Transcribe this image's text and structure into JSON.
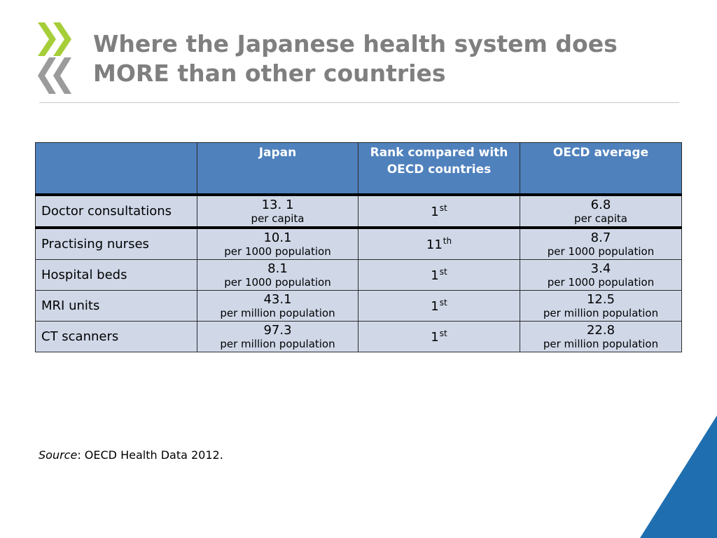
{
  "header": {
    "title_line1": "Where the Japanese health system does",
    "title_line2": "MORE than other countries"
  },
  "table": {
    "columns": [
      "",
      "Japan",
      "Rank compared with OECD countries",
      "OECD average"
    ],
    "rows": [
      {
        "label": "Doctor consultations",
        "japan_value": "13. 1",
        "japan_unit": "per capita",
        "rank_num": "1",
        "rank_suffix": "st",
        "oecd_value": "6.8",
        "oecd_unit": "per capita"
      },
      {
        "label": "Practising nurses",
        "japan_value": "10.1",
        "japan_unit": "per 1000 population",
        "rank_num": "11",
        "rank_suffix": "th",
        "oecd_value": "8.7",
        "oecd_unit": "per 1000 population"
      },
      {
        "label": "Hospital beds",
        "japan_value": "8.1",
        "japan_unit": "per 1000 population",
        "rank_num": "1",
        "rank_suffix": "st",
        "oecd_value": "3.4",
        "oecd_unit": "per 1000 population"
      },
      {
        "label": "MRI units",
        "japan_value": "43.1",
        "japan_unit": "per million population",
        "rank_num": "1",
        "rank_suffix": "st",
        "oecd_value": "12.5",
        "oecd_unit": "per million population"
      },
      {
        "label": "CT scanners",
        "japan_value": "97.3",
        "japan_unit": "per million population",
        "rank_num": "1",
        "rank_suffix": "st",
        "oecd_value": "22.8",
        "oecd_unit": "per million population"
      }
    ]
  },
  "source": {
    "label": "Source",
    "text": ": OECD Health Data 2012."
  },
  "colors": {
    "title": "#7f7f7f",
    "header_bg": "#4f81bd",
    "row_bg": "#d0d8e8",
    "logo_green": "#a6ce39",
    "logo_grey": "#9b9b9b",
    "corner_blue": "#1f6fb0"
  },
  "icons": {
    "logo": "oecd-logo-icon",
    "corner": "corner-triangle-decoration"
  }
}
